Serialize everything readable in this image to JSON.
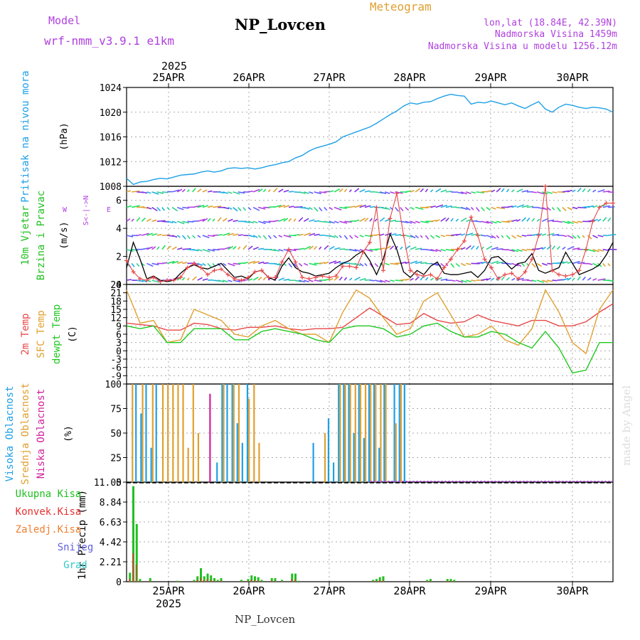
{
  "header": {
    "model_label": "Model",
    "model_name": "wrf-nmm_v3.9.1 e1km",
    "title": "NP_Lovcen",
    "meteogram": "Meteogram",
    "lonlat": "lon,lat (18.84E, 42.39N)",
    "elevation": "Nadmorska Visina 1459m",
    "model_elevation": "Nadmorska Visina u modelu 1256.12m",
    "footer": "NP_Lovcen",
    "watermark": "made by Angel"
  },
  "colors": {
    "pressure": "#1ea0e6",
    "wind_label": "#20c020",
    "wind_sub": "#b040e0",
    "temp": "#e84848",
    "sfc": "#e0a030",
    "dew": "#20c820",
    "high_cloud": "#1ea0e6",
    "mid_cloud": "#e0a030",
    "low_cloud": "#d0209a",
    "precip_total": "#20c020",
    "precip_conv": "#e83030",
    "precip_frz": "#f08030",
    "snow": "#6060e0",
    "graupel": "#30c8c8"
  },
  "axes": {
    "year": "2025",
    "day_ticks": [
      "25APR",
      "26APR",
      "27APR",
      "28APR",
      "29APR",
      "30APR"
    ],
    "time_range": [
      0,
      144
    ]
  },
  "chart_data": [
    {
      "type": "line",
      "panel": "pressure",
      "ylabel": "Pritisak na nivou mora",
      "unit": "(hPa)",
      "ylim": [
        1008,
        1024
      ],
      "yticks": [
        "1024",
        "1020",
        "1016",
        "1012",
        "1008"
      ],
      "x": [
        0,
        2,
        4,
        6,
        8,
        10,
        12,
        14,
        16,
        18,
        20,
        22,
        24,
        26,
        28,
        30,
        32,
        34,
        36,
        38,
        40,
        42,
        44,
        46,
        48,
        50,
        52,
        54,
        56,
        58,
        60,
        62,
        64,
        66,
        68,
        70,
        72,
        74,
        76,
        78,
        80,
        82,
        84,
        86,
        88,
        90,
        92,
        94,
        96,
        98,
        100,
        102,
        104,
        106,
        108,
        110,
        112,
        114,
        116,
        118,
        120,
        122,
        124,
        126,
        128,
        130,
        132,
        134,
        136,
        138,
        140,
        142,
        144
      ],
      "series": [
        {
          "values": [
            1009.3,
            1008.3,
            1008.7,
            1008.8,
            1009.1,
            1009.3,
            1009.2,
            1009.5,
            1009.8,
            1009.9,
            1010.0,
            1010.3,
            1010.5,
            1010.3,
            1010.5,
            1010.9,
            1011.0,
            1010.9,
            1011.0,
            1010.8,
            1011.0,
            1011.3,
            1011.5,
            1011.8,
            1012.0,
            1012.6,
            1013.0,
            1013.7,
            1014.2,
            1014.5,
            1014.8,
            1015.2,
            1016.0,
            1016.4,
            1016.8,
            1017.2,
            1017.6,
            1018.2,
            1018.9,
            1019.6,
            1020.2,
            1021.0,
            1021.5,
            1021.3,
            1021.6,
            1021.7,
            1022.2,
            1022.6,
            1022.9,
            1022.7,
            1022.6,
            1021.3,
            1021.6,
            1021.5,
            1021.8,
            1021.5,
            1021.2,
            1021.5,
            1021.0,
            1020.6,
            1021.2,
            1021.7,
            1020.5,
            1020.0,
            1020.8,
            1021.3,
            1021.1,
            1020.8,
            1020.6,
            1020.8,
            1020.7,
            1020.5,
            1020.0
          ]
        }
      ]
    },
    {
      "type": "line",
      "panel": "wind",
      "ylabel_1": "10m Vjetar",
      "ylabel_2": "Brzina i Pravac",
      "unit": "(m/s)",
      "compass_w": "W",
      "compass_e": "E",
      "compass_v": "S<-|->N",
      "ylim": [
        0,
        7
      ],
      "yticks": [
        "6",
        "4",
        "2",
        "0"
      ],
      "x": [
        0,
        2,
        4,
        6,
        8,
        10,
        12,
        14,
        16,
        18,
        20,
        22,
        24,
        26,
        28,
        30,
        32,
        34,
        36,
        38,
        40,
        42,
        44,
        46,
        48,
        50,
        52,
        54,
        56,
        58,
        60,
        62,
        64,
        66,
        68,
        70,
        72,
        74,
        76,
        78,
        80,
        82,
        84,
        86,
        88,
        90,
        92,
        94,
        96,
        98,
        100,
        102,
        104,
        106,
        108,
        110,
        112,
        114,
        116,
        118,
        120,
        122,
        124,
        126,
        128,
        130,
        132,
        134,
        136,
        138,
        140,
        142,
        144
      ],
      "series": [
        {
          "name": "speed",
          "values": [
            1.2,
            3.0,
            1.8,
            0.4,
            0.6,
            0.3,
            0.2,
            0.3,
            0.8,
            1.2,
            1.4,
            1.2,
            1.1,
            1.3,
            1.5,
            1.0,
            0.5,
            0.6,
            0.4,
            0.9,
            1.0,
            0.5,
            0.3,
            1.3,
            1.9,
            1.2,
            0.9,
            0.8,
            0.6,
            0.7,
            0.8,
            1.2,
            1.5,
            1.7,
            2.1,
            2.4,
            1.7,
            0.7,
            1.8,
            3.6,
            2.5,
            0.9,
            0.5,
            1.0,
            0.7,
            1.3,
            1.6,
            0.8,
            0.7,
            0.7,
            0.8,
            0.9,
            0.5,
            1.0,
            1.9,
            2.0,
            1.6,
            1.1,
            1.5,
            1.6,
            2.2,
            1.0,
            0.8,
            1.0,
            1.2,
            2.3,
            1.5,
            0.7,
            0.9,
            1.1,
            1.4,
            2.1,
            3.0
          ]
        },
        {
          "name": "gust",
          "values": [
            1.7,
            0.9,
            0.4,
            0.3,
            0.5,
            0.2,
            0.3,
            0.3,
            0.5,
            1.2,
            1.5,
            1.2,
            0.7,
            1.0,
            1.1,
            0.7,
            0.4,
            0.3,
            0.5,
            0.9,
            1.0,
            0.5,
            0.5,
            1.6,
            2.5,
            1.6,
            0.5,
            0.4,
            0.5,
            0.6,
            0.5,
            0.6,
            1.3,
            1.3,
            1.2,
            2.3,
            3.0,
            5.5,
            1.0,
            4.7,
            6.5,
            3.5,
            1.0,
            0.7,
            0.6,
            0.7,
            0.4,
            1.2,
            1.8,
            2.5,
            3.1,
            4.8,
            3.5,
            1.8,
            1.2,
            0.4,
            0.7,
            0.8,
            0.4,
            0.9,
            1.8,
            3.5,
            7.0,
            1.0,
            0.7,
            0.6,
            0.7,
            1.0,
            2.5,
            4.5,
            5.5,
            5.8,
            5.8
          ]
        }
      ]
    },
    {
      "type": "line",
      "panel": "temperature",
      "ylabel_1": "2m Temp",
      "ylabel_2": "SFC Temp",
      "ylabel_3": "dewpt Temp",
      "unit": "(C)",
      "ylim": [
        -12,
        24
      ],
      "yticks": [
        "24",
        "21",
        "18",
        "15",
        "12",
        "9",
        "6",
        "3",
        "0",
        "-3",
        "-6",
        "-9"
      ],
      "x": [
        0,
        4,
        8,
        12,
        16,
        20,
        24,
        28,
        32,
        36,
        40,
        44,
        48,
        52,
        56,
        60,
        64,
        68,
        72,
        76,
        80,
        84,
        88,
        92,
        96,
        100,
        104,
        108,
        112,
        116,
        120,
        124,
        128,
        132,
        136,
        140,
        144
      ],
      "series": [
        {
          "name": "2m",
          "values": [
            10,
            9.5,
            9,
            7.5,
            7.5,
            10,
            9.5,
            8,
            7.5,
            8.5,
            8.5,
            9,
            8,
            7.5,
            8,
            8,
            8.5,
            12,
            15.5,
            12.5,
            9.5,
            10,
            13.5,
            11,
            10,
            10.5,
            13,
            11,
            10,
            9,
            11,
            11,
            9,
            9,
            10.5,
            14,
            17
          ]
        },
        {
          "name": "sfc",
          "values": [
            22,
            10,
            11,
            3,
            4,
            15,
            13,
            11,
            6,
            5,
            9,
            11,
            8,
            6,
            6,
            3,
            14,
            22,
            19,
            12,
            6,
            8,
            18,
            21,
            13,
            5,
            6,
            9,
            4,
            2,
            8,
            22,
            14,
            3,
            -1,
            15,
            22
          ]
        },
        {
          "name": "dew",
          "values": [
            9,
            8,
            9,
            3,
            3,
            8,
            8,
            8,
            4,
            4,
            7,
            8,
            7,
            6,
            4,
            3,
            8,
            9,
            9,
            8,
            5,
            6,
            9,
            10,
            7,
            5,
            5,
            7,
            6,
            3,
            1,
            7,
            1,
            -8,
            -7,
            3,
            3
          ]
        }
      ]
    },
    {
      "type": "bar",
      "panel": "clouds",
      "ylabel_1": "Visoka Oblacnost",
      "ylabel_2": "Srednja Oblacnost",
      "ylabel_3": "Niska Oblacnost",
      "unit": "(%)",
      "ylim": [
        0,
        100
      ],
      "yticks": [
        "100",
        "75",
        "50",
        "25",
        "0"
      ],
      "series": [
        {
          "name": "high",
          "values": [
            0,
            100,
            70,
            100,
            35,
            100,
            0,
            0,
            0,
            0,
            0,
            0,
            0,
            0,
            0,
            0,
            0,
            20,
            100,
            100,
            100,
            60,
            40,
            100,
            0,
            0,
            0,
            0,
            0,
            0,
            0,
            0,
            0,
            0,
            0,
            0,
            40,
            0,
            0,
            65,
            20,
            100,
            100,
            100,
            50,
            100,
            45,
            100,
            100,
            35,
            100,
            0,
            100,
            100,
            100,
            0,
            0,
            0,
            0,
            0,
            0,
            0,
            0,
            0,
            0,
            0,
            0,
            0,
            0,
            0,
            0,
            0
          ]
        },
        {
          "name": "mid",
          "values": [
            100,
            0,
            100,
            0,
            100,
            0,
            100,
            100,
            100,
            100,
            100,
            35,
            100,
            50,
            0,
            0,
            0,
            0,
            100,
            0,
            100,
            100,
            0,
            85,
            100,
            40,
            0,
            0,
            0,
            0,
            0,
            0,
            0,
            0,
            0,
            0,
            0,
            0,
            50,
            0,
            0,
            100,
            100,
            100,
            100,
            100,
            100,
            100,
            100,
            100,
            100,
            0,
            60,
            100,
            0,
            0,
            0,
            0,
            0,
            0,
            0,
            0,
            0,
            0,
            0,
            0,
            0,
            0,
            0,
            0,
            0,
            0
          ]
        },
        {
          "name": "low",
          "values": [
            0,
            0,
            0,
            0,
            0,
            0,
            0,
            0,
            0,
            0,
            0,
            0,
            0,
            0,
            0,
            90,
            0,
            0,
            0,
            0,
            0,
            0,
            0,
            0,
            0,
            0,
            0,
            0,
            0,
            0,
            0,
            0,
            0,
            0,
            0,
            0,
            0,
            0,
            0,
            0,
            0,
            0,
            0,
            0,
            0,
            0,
            0,
            0,
            0,
            0,
            0,
            0,
            0,
            0,
            0,
            0,
            0,
            0,
            0,
            0,
            0,
            0,
            0,
            0,
            0,
            0,
            0,
            0,
            0,
            0,
            0,
            0
          ]
        }
      ]
    },
    {
      "type": "bar",
      "panel": "precip",
      "ylabel": "1hr Precip (mm)",
      "legend": [
        "Ukupna Kisa",
        "Konvek.Kisa",
        "Zaledj.Kisa",
        "Snijeg",
        "Grad"
      ],
      "ylim": [
        0,
        11.05
      ],
      "yticks": [
        "11.05",
        "8.84",
        "6.63",
        "4.42",
        "2.21",
        "0"
      ],
      "bars": [
        {
          "x": 1,
          "value": 1.0
        },
        {
          "x": 2,
          "value": 10.6
        },
        {
          "x": 3,
          "value": 6.4
        },
        {
          "x": 4,
          "value": 0.3
        },
        {
          "x": 7,
          "value": 0.4
        },
        {
          "x": 15,
          "value": 0.1
        },
        {
          "x": 20,
          "value": 0.2
        },
        {
          "x": 21,
          "value": 0.6
        },
        {
          "x": 22,
          "value": 1.5
        },
        {
          "x": 23,
          "value": 0.6
        },
        {
          "x": 24,
          "value": 0.9
        },
        {
          "x": 25,
          "value": 0.7
        },
        {
          "x": 26,
          "value": 0.4
        },
        {
          "x": 27,
          "value": 0.2
        },
        {
          "x": 28,
          "value": 0.4
        },
        {
          "x": 34,
          "value": 0.2
        },
        {
          "x": 36,
          "value": 0.3
        },
        {
          "x": 37,
          "value": 0.7
        },
        {
          "x": 38,
          "value": 0.6
        },
        {
          "x": 39,
          "value": 0.5
        },
        {
          "x": 40,
          "value": 0.2
        },
        {
          "x": 43,
          "value": 0.4
        },
        {
          "x": 44,
          "value": 0.4
        },
        {
          "x": 46,
          "value": 0.2
        },
        {
          "x": 49,
          "value": 0.9
        },
        {
          "x": 50,
          "value": 0.9
        },
        {
          "x": 51,
          "value": 0.1
        },
        {
          "x": 73,
          "value": 0.2
        },
        {
          "x": 74,
          "value": 0.3
        },
        {
          "x": 75,
          "value": 0.5
        },
        {
          "x": 76,
          "value": 0.6
        },
        {
          "x": 89,
          "value": 0.2
        },
        {
          "x": 90,
          "value": 0.3
        },
        {
          "x": 95,
          "value": 0.3
        },
        {
          "x": 96,
          "value": 0.3
        },
        {
          "x": 97,
          "value": 0.2
        }
      ]
    }
  ]
}
